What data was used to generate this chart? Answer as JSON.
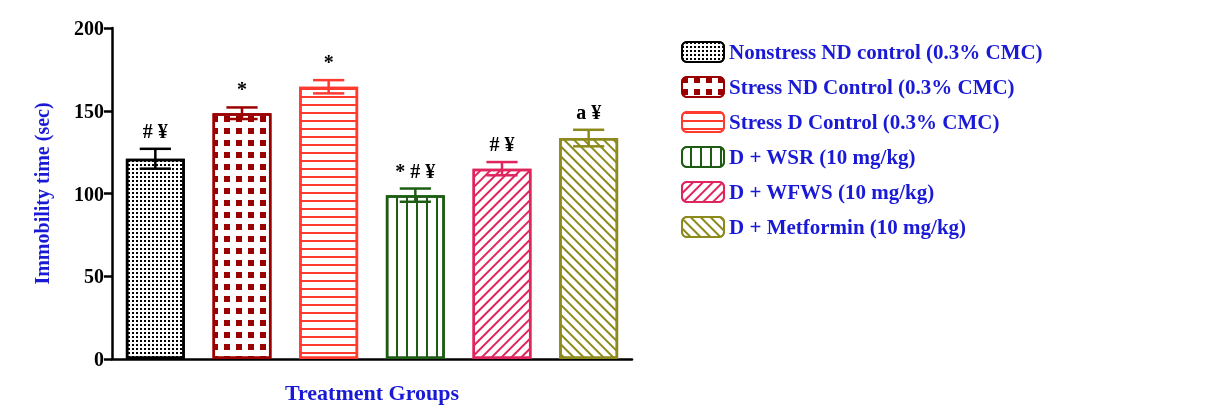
{
  "chart_data": {
    "type": "bar",
    "xlabel": "Treatment Groups",
    "ylabel": "Immobility time (sec)",
    "categories": [
      null,
      null,
      null,
      null,
      null,
      null
    ],
    "stacked": true,
    "series": [
      {
        "name": "Nonstress ND control (0.3% CMC)",
        "color": "#000000",
        "values": [
          121,
          null,
          null,
          null,
          null,
          null
        ],
        "errors": [
          6,
          null,
          null,
          null,
          null,
          null
        ]
      },
      {
        "name": "Stress ND Control (0.3% CMC)",
        "color": "#9b0000",
        "values": [
          null,
          148.5,
          null,
          null,
          null,
          null
        ],
        "errors": [
          null,
          3.5,
          null,
          null,
          null,
          null
        ]
      },
      {
        "name": "Stress D Control (0.3% CMC)",
        "color": "#ff3b2f",
        "values": [
          null,
          null,
          164.5,
          null,
          null,
          null
        ],
        "errors": [
          null,
          null,
          4,
          null,
          null,
          null
        ]
      },
      {
        "name": "D + WSR (10 mg/kg)",
        "color": "#1e5c14",
        "values": [
          null,
          null,
          null,
          99,
          null,
          null
        ],
        "errors": [
          null,
          null,
          null,
          4,
          null,
          null
        ]
      },
      {
        "name": "D + WFWS (10 mg/kg)",
        "color": "#e0245e",
        "values": [
          null,
          null,
          null,
          null,
          115,
          null
        ],
        "errors": [
          null,
          null,
          null,
          null,
          4,
          null
        ]
      },
      {
        "name": "D + Metformin (10 mg/kg)",
        "color": "#8c8a1c",
        "values": [
          null,
          null,
          null,
          null,
          null,
          133.5
        ],
        "errors": [
          null,
          null,
          null,
          null,
          null,
          5
        ]
      }
    ],
    "annotations": [
      "# ¥",
      "*",
      "*",
      "* # ¥",
      "# ¥",
      "a ¥"
    ],
    "ylim": [
      0,
      200
    ],
    "yticks": [
      0,
      50,
      100,
      150,
      200
    ],
    "grid": false,
    "legend": "right"
  }
}
